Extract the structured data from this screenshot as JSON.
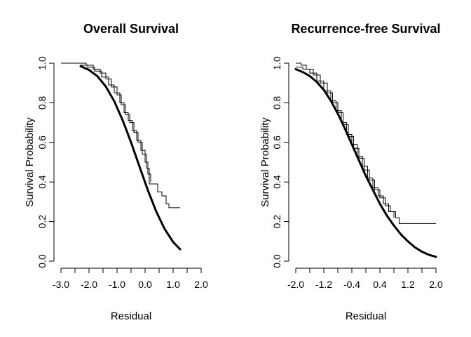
{
  "chart_data": [
    {
      "type": "line",
      "title": "Overall Survival",
      "xlabel": "Residual",
      "ylabel": "Survival Probability",
      "xlim": [
        -3.0,
        2.0
      ],
      "ylim": [
        0.0,
        1.0
      ],
      "xticks": [
        -3.0,
        -2.5,
        -2.0,
        -1.5,
        -1.0,
        -0.5,
        0.0,
        0.5,
        1.0,
        1.5,
        2.0
      ],
      "xtick_labels": [
        "-3.0",
        "-2.0",
        "-1.0",
        "0.0",
        "1.0",
        "2.0"
      ],
      "yticks": [
        0.0,
        0.2,
        0.4,
        0.6,
        0.8,
        1.0
      ],
      "ytick_labels": [
        "0.0",
        "0.2",
        "0.4",
        "0.6",
        "0.8",
        "1.0"
      ],
      "fitted_curve": {
        "x": [
          -2.3,
          -2.0,
          -1.7,
          -1.4,
          -1.1,
          -0.8,
          -0.5,
          -0.2,
          0.1,
          0.4,
          0.7,
          1.0,
          1.25
        ],
        "y": [
          0.985,
          0.966,
          0.934,
          0.882,
          0.808,
          0.712,
          0.6,
          0.478,
          0.358,
          0.25,
          0.162,
          0.097,
          0.06
        ]
      },
      "km_curves": [
        {
          "x": [
            -3.0,
            -2.35,
            -2.1,
            -1.85,
            -1.6,
            -1.4,
            -1.2,
            -1.0,
            -0.85,
            -0.7,
            -0.55,
            -0.4,
            -0.25,
            -0.1,
            0.05,
            0.15,
            0.3,
            0.45,
            0.6,
            0.75,
            0.85,
            1.25
          ],
          "y": [
            1.0,
            1.0,
            0.99,
            0.97,
            0.95,
            0.92,
            0.88,
            0.84,
            0.79,
            0.74,
            0.7,
            0.65,
            0.6,
            0.54,
            0.47,
            0.39,
            0.39,
            0.35,
            0.33,
            0.29,
            0.27,
            0.27
          ]
        },
        {
          "x": [
            -2.3,
            -2.05,
            -1.8,
            -1.55,
            -1.3,
            -1.1,
            -0.9,
            -0.75,
            -0.6,
            -0.45,
            -0.3,
            -0.15,
            0.0,
            0.1,
            0.2
          ],
          "y": [
            0.99,
            0.98,
            0.96,
            0.93,
            0.89,
            0.85,
            0.8,
            0.75,
            0.71,
            0.66,
            0.61,
            0.56,
            0.5,
            0.44,
            0.4
          ]
        }
      ]
    },
    {
      "type": "line",
      "title": "Recurrence-free Survival",
      "xlabel": "Residual",
      "ylabel": "Survival Probability",
      "xlim": [
        -2.0,
        2.0
      ],
      "ylim": [
        0.0,
        1.0
      ],
      "xticks": [
        -2.0,
        -1.6,
        -1.2,
        -0.8,
        -0.4,
        0.0,
        0.4,
        0.8,
        1.2,
        1.6,
        2.0
      ],
      "xtick_labels": [
        "-2.0",
        "-1.2",
        "-0.4",
        "0.4",
        "1.2",
        "2.0"
      ],
      "yticks": [
        0.0,
        0.2,
        0.4,
        0.6,
        0.8,
        1.0
      ],
      "ytick_labels": [
        "0.0",
        "0.2",
        "0.4",
        "0.6",
        "0.8",
        "1.0"
      ],
      "fitted_curve": {
        "x": [
          -2.0,
          -1.8,
          -1.6,
          -1.4,
          -1.2,
          -1.0,
          -0.8,
          -0.6,
          -0.4,
          -0.2,
          0.0,
          0.2,
          0.4,
          0.6,
          0.8,
          1.0,
          1.2,
          1.4,
          1.6,
          1.8,
          2.0
        ],
        "y": [
          0.97,
          0.955,
          0.935,
          0.905,
          0.865,
          0.81,
          0.745,
          0.67,
          0.59,
          0.51,
          0.43,
          0.36,
          0.29,
          0.23,
          0.18,
          0.135,
          0.1,
          0.07,
          0.048,
          0.032,
          0.022
        ]
      },
      "km_curves": [
        {
          "x": [
            -2.0,
            -1.85,
            -1.7,
            -1.5,
            -1.3,
            -1.1,
            -0.95,
            -0.8,
            -0.65,
            -0.5,
            -0.35,
            -0.2,
            -0.05,
            0.1,
            0.25,
            0.4,
            0.55,
            0.7,
            0.85,
            0.95,
            2.0
          ],
          "y": [
            1.0,
            0.99,
            0.97,
            0.94,
            0.9,
            0.85,
            0.8,
            0.75,
            0.69,
            0.63,
            0.57,
            0.52,
            0.46,
            0.41,
            0.36,
            0.32,
            0.28,
            0.25,
            0.22,
            0.19,
            0.19
          ]
        },
        {
          "x": [
            -2.0,
            -1.8,
            -1.6,
            -1.4,
            -1.2,
            -1.0,
            -0.85,
            -0.7,
            -0.55,
            -0.4,
            -0.25,
            -0.1,
            0.05,
            0.2,
            0.35,
            0.5,
            0.65,
            0.8
          ],
          "y": [
            0.98,
            0.97,
            0.95,
            0.91,
            0.86,
            0.81,
            0.76,
            0.7,
            0.64,
            0.59,
            0.53,
            0.48,
            0.42,
            0.37,
            0.33,
            0.29,
            0.25,
            0.22
          ]
        }
      ]
    }
  ]
}
